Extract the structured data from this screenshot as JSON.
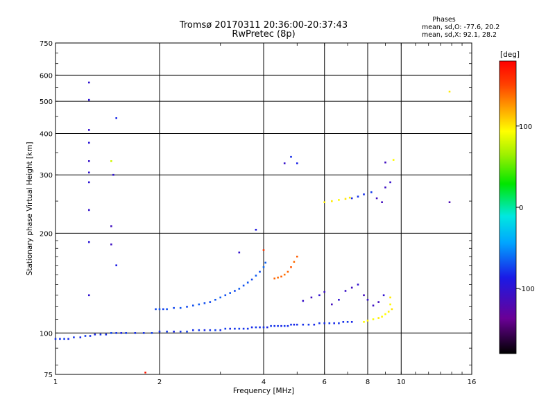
{
  "chart_data": {
    "type": "scatter",
    "title": "Tromsø 20170311 20:36:00-20:37:43",
    "subtitle": "RwPretec (8p)",
    "stats": {
      "heading": "Phases",
      "line_o": "mean, sd,O: -77.6, 20.2",
      "line_x": "mean, sd,X:  92.1, 28.2"
    },
    "xlabel": "Frequency [MHz]",
    "ylabel": "Stationary phase Virtual Height [km]",
    "xscale": "log",
    "yscale": "log",
    "xlim": [
      1,
      16
    ],
    "ylim": [
      75,
      750
    ],
    "xticks": [
      1,
      2,
      4,
      6,
      8,
      10,
      16
    ],
    "yticks": [
      75,
      100,
      200,
      300,
      400,
      500,
      600,
      750
    ],
    "grid": true,
    "colorbar": {
      "label": "[deg]",
      "range": [
        -180,
        180
      ],
      "ticks": [
        100,
        0,
        -100
      ]
    },
    "series": [
      {
        "points": [
          [
            1.0,
            96,
            -78
          ],
          [
            1.03,
            96,
            -80
          ],
          [
            1.06,
            96,
            -75
          ],
          [
            1.09,
            96,
            -82
          ],
          [
            1.13,
            97,
            -78
          ],
          [
            1.18,
            97,
            -82
          ],
          [
            1.22,
            98,
            -76
          ],
          [
            1.26,
            98,
            -80
          ],
          [
            1.3,
            99,
            -82
          ],
          [
            1.35,
            99,
            -78
          ],
          [
            1.4,
            99,
            -80
          ],
          [
            1.45,
            100,
            -72
          ],
          [
            1.5,
            100,
            -78
          ],
          [
            1.55,
            100,
            -82
          ],
          [
            1.6,
            100,
            -76
          ],
          [
            1.7,
            100,
            -80
          ],
          [
            1.8,
            100,
            -78
          ],
          [
            1.9,
            100,
            -74
          ],
          [
            2.0,
            101,
            -80
          ],
          [
            2.1,
            101,
            -76
          ],
          [
            2.2,
            101,
            -82
          ],
          [
            2.3,
            101,
            -78
          ],
          [
            2.4,
            101,
            -74
          ],
          [
            2.5,
            102,
            -80
          ],
          [
            2.6,
            102,
            -76
          ],
          [
            2.7,
            102,
            -82
          ],
          [
            2.8,
            102,
            -78
          ],
          [
            2.9,
            102,
            -74
          ],
          [
            3.0,
            102,
            -80
          ],
          [
            3.1,
            103,
            -76
          ],
          [
            3.2,
            103,
            -82
          ],
          [
            3.3,
            103,
            -78
          ],
          [
            3.4,
            103,
            -74
          ],
          [
            3.5,
            103,
            -80
          ],
          [
            3.6,
            103,
            -78
          ],
          [
            3.7,
            104,
            -82
          ],
          [
            3.8,
            104,
            -76
          ],
          [
            3.9,
            104,
            -80
          ],
          [
            4.0,
            104,
            -78
          ],
          [
            4.1,
            104,
            -84
          ],
          [
            4.2,
            105,
            -76
          ],
          [
            4.3,
            105,
            -80
          ],
          [
            4.4,
            105,
            -78
          ],
          [
            4.5,
            105,
            -82
          ],
          [
            4.6,
            105,
            -76
          ],
          [
            4.7,
            105,
            -80
          ],
          [
            4.8,
            106,
            -78
          ],
          [
            4.9,
            106,
            -84
          ],
          [
            5.0,
            106,
            -78
          ],
          [
            5.2,
            106,
            -80
          ],
          [
            5.4,
            106,
            -76
          ],
          [
            5.6,
            106,
            -82
          ],
          [
            5.8,
            107,
            -78
          ],
          [
            6.0,
            107,
            -80
          ],
          [
            6.2,
            107,
            -76
          ],
          [
            6.4,
            107,
            -82
          ],
          [
            6.6,
            107,
            -78
          ],
          [
            6.8,
            108,
            -80
          ],
          [
            7.0,
            108,
            -76
          ],
          [
            7.2,
            108,
            -82
          ]
        ]
      },
      {
        "points": [
          [
            1.95,
            118,
            -72
          ],
          [
            2.0,
            118,
            -70
          ],
          [
            2.05,
            118,
            -74
          ],
          [
            2.1,
            118,
            -70
          ],
          [
            2.2,
            119,
            -72
          ],
          [
            2.3,
            119,
            -68
          ],
          [
            2.4,
            120,
            -72
          ],
          [
            2.5,
            121,
            -70
          ],
          [
            2.6,
            122,
            -66
          ],
          [
            2.7,
            123,
            -70
          ],
          [
            2.8,
            124,
            -72
          ],
          [
            2.9,
            126,
            -68
          ],
          [
            3.0,
            128,
            -66
          ],
          [
            3.1,
            130,
            -70
          ],
          [
            3.2,
            132,
            -68
          ],
          [
            3.3,
            134,
            -72
          ],
          [
            3.4,
            136,
            -66
          ],
          [
            3.5,
            139,
            -70
          ],
          [
            3.6,
            142,
            -68
          ],
          [
            3.7,
            145,
            -72
          ],
          [
            3.8,
            149,
            -66
          ],
          [
            3.9,
            153,
            -70
          ],
          [
            4.0,
            158,
            -62
          ],
          [
            4.05,
            163,
            -64
          ]
        ]
      },
      {
        "points": [
          [
            4.3,
            146,
            140
          ],
          [
            4.4,
            147,
            138
          ],
          [
            4.5,
            148,
            142
          ],
          [
            4.6,
            150,
            136
          ],
          [
            4.7,
            153,
            140
          ],
          [
            4.8,
            158,
            144
          ],
          [
            4.9,
            164,
            138
          ],
          [
            5.0,
            170,
            142
          ]
        ]
      },
      {
        "points": [
          [
            5.2,
            125,
            -105
          ],
          [
            5.5,
            128,
            -110
          ],
          [
            5.8,
            130,
            -100
          ],
          [
            6.0,
            133,
            -108
          ],
          [
            6.3,
            122,
            -112
          ],
          [
            6.6,
            126,
            -100
          ],
          [
            6.9,
            134,
            -106
          ],
          [
            7.2,
            137,
            -110
          ],
          [
            7.5,
            140,
            -102
          ],
          [
            7.8,
            130,
            -112
          ],
          [
            8.0,
            126,
            -104
          ],
          [
            8.3,
            121,
            -108
          ],
          [
            8.6,
            124,
            -112
          ],
          [
            8.9,
            130,
            -100
          ]
        ]
      },
      {
        "points": [
          [
            7.8,
            108,
            95
          ],
          [
            8.0,
            109,
            98
          ],
          [
            8.3,
            110,
            92
          ],
          [
            8.6,
            111,
            100
          ],
          [
            8.8,
            112,
            96
          ],
          [
            9.0,
            114,
            94
          ],
          [
            9.2,
            116,
            98
          ],
          [
            9.4,
            118,
            102
          ],
          [
            9.3,
            122,
            96
          ],
          [
            9.3,
            128,
            100
          ]
        ]
      },
      {
        "points": [
          [
            6.0,
            248,
            98
          ],
          [
            6.3,
            250,
            100
          ],
          [
            6.6,
            252,
            95
          ],
          [
            6.9,
            254,
            102
          ],
          [
            7.1,
            256,
            98
          ]
        ]
      },
      {
        "points": [
          [
            7.2,
            255,
            -82
          ],
          [
            7.5,
            258,
            -78
          ],
          [
            7.8,
            262,
            -80
          ],
          [
            8.2,
            266,
            -76
          ],
          [
            8.5,
            255,
            -110
          ],
          [
            8.8,
            248,
            -112
          ],
          [
            9.0,
            275,
            -108
          ],
          [
            9.3,
            285,
            -104
          ]
        ]
      },
      {
        "points": [
          [
            1.25,
            570,
            -100
          ],
          [
            1.25,
            505,
            -98
          ],
          [
            1.25,
            410,
            -102
          ],
          [
            1.25,
            375,
            -96
          ],
          [
            1.25,
            330,
            -104
          ],
          [
            1.25,
            305,
            -100
          ],
          [
            1.25,
            285,
            -98
          ],
          [
            1.25,
            235,
            -102
          ],
          [
            1.25,
            188,
            -96
          ],
          [
            1.25,
            130,
            -100
          ],
          [
            1.45,
            210,
            -110
          ],
          [
            1.45,
            185,
            -108
          ],
          [
            1.5,
            445,
            -82
          ],
          [
            1.5,
            160,
            -86
          ],
          [
            1.45,
            330,
            80
          ],
          [
            1.47,
            300,
            -100
          ],
          [
            4.6,
            325,
            -104
          ],
          [
            4.8,
            340,
            -80
          ],
          [
            5.0,
            325,
            -84
          ],
          [
            3.8,
            205,
            -90
          ],
          [
            13.8,
            535,
            100
          ],
          [
            13.8,
            248,
            -118
          ],
          [
            9.0,
            327,
            -110
          ],
          [
            9.5,
            333,
            95
          ],
          [
            1.82,
            76,
            170
          ],
          [
            3.4,
            175,
            -102
          ],
          [
            4.0,
            178,
            155
          ]
        ]
      }
    ]
  }
}
